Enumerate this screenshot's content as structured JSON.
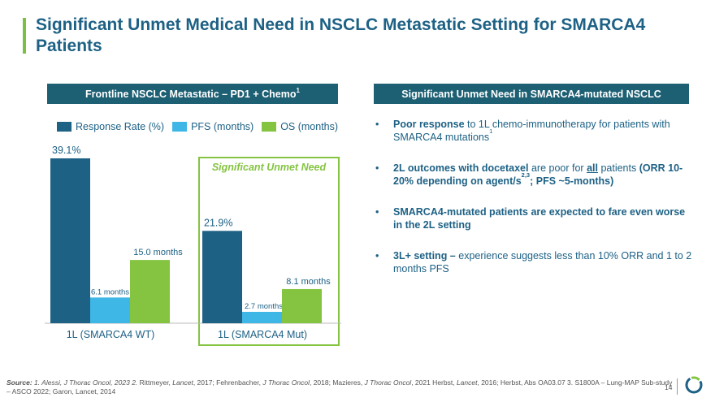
{
  "title": "Significant Unmet Medical Need in NSCLC Metastatic Setting for SMARCA4 Patients",
  "left_header": {
    "text": "Frontline NSCLC Metastatic – PD1 + Chemo",
    "sup": "1"
  },
  "right_header": "Significant Unmet Need in SMARCA4-mutated NSCLC",
  "legend": [
    {
      "label": "Response Rate (%)",
      "color": "#1d6185"
    },
    {
      "label": "PFS (months)",
      "color": "#3fb7e6"
    },
    {
      "label": "OS (months)",
      "color": "#84c441"
    }
  ],
  "highlight_label": "Significant Unmet Need",
  "chart_data": {
    "type": "bar",
    "categories": [
      "1L (SMARCA4 WT)",
      "1L (SMARCA4 Mut)"
    ],
    "series": [
      {
        "name": "Response Rate (%)",
        "values": [
          39.1,
          21.9
        ],
        "labels": [
          "39.1%",
          "21.9%"
        ],
        "color": "#1d6185"
      },
      {
        "name": "PFS (months)",
        "values": [
          6.1,
          2.7
        ],
        "labels": [
          "6.1 months",
          "2.7 months"
        ],
        "color": "#3fb7e6"
      },
      {
        "name": "OS (months)",
        "values": [
          15.0,
          8.1
        ],
        "labels": [
          "15.0 months",
          "8.1 months"
        ],
        "color": "#84c441"
      }
    ],
    "ylim": [
      0,
      40
    ]
  },
  "bullets": [
    [
      {
        "t": "Poor response",
        "b": true
      },
      {
        "t": " to 1L chemo-immunotherapy for patients with SMARCA4 mutations"
      },
      {
        "t": "1",
        "sup": true
      }
    ],
    [
      {
        "t": "2L outcomes with docetaxel",
        "b": true
      },
      {
        "t": " are poor for "
      },
      {
        "t": "all",
        "b": true,
        "u": true
      },
      {
        "t": " patients "
      },
      {
        "t": "(ORR 10-20% depending on agent/s",
        "b": true
      },
      {
        "t": "2,3",
        "sup": true,
        "b": true
      },
      {
        "t": "; PFS ~5-months)",
        "b": true
      }
    ],
    [
      {
        "t": "SMARCA4-mutated patients are expected to fare even worse in the 2L setting",
        "b": true
      }
    ],
    [
      {
        "t": "3L+ setting –",
        "b": true
      },
      {
        "t": " experience suggests less than 10% ORR and 1 to 2 months PFS"
      }
    ]
  ],
  "source": {
    "label": "Source:",
    "refs": [
      {
        "t": " 1. Alessi, ",
        "i": true
      },
      {
        "t": "J Thorac Oncol",
        "i": true
      },
      {
        "t": ", 2023 2. ",
        "i": true
      },
      {
        "t": "Rittmeyer, "
      },
      {
        "t": "Lancet",
        "i": true
      },
      {
        "t": ", 2017; Fehrenbacher, "
      },
      {
        "t": "J Thorac Oncol",
        "i": true
      },
      {
        "t": ", 2018; Mazieres, "
      },
      {
        "t": "J Thorac Oncol",
        "i": true
      },
      {
        "t": ", 2021 Herbst, "
      },
      {
        "t": "Lancet",
        "i": true
      },
      {
        "t": ", 2016; Herbst, Abs OA03.07 3. S1800A – Lung-MAP Sub-study – ASCO 2022; Garon, Lancet, 2014"
      }
    ]
  },
  "page_number": "14"
}
